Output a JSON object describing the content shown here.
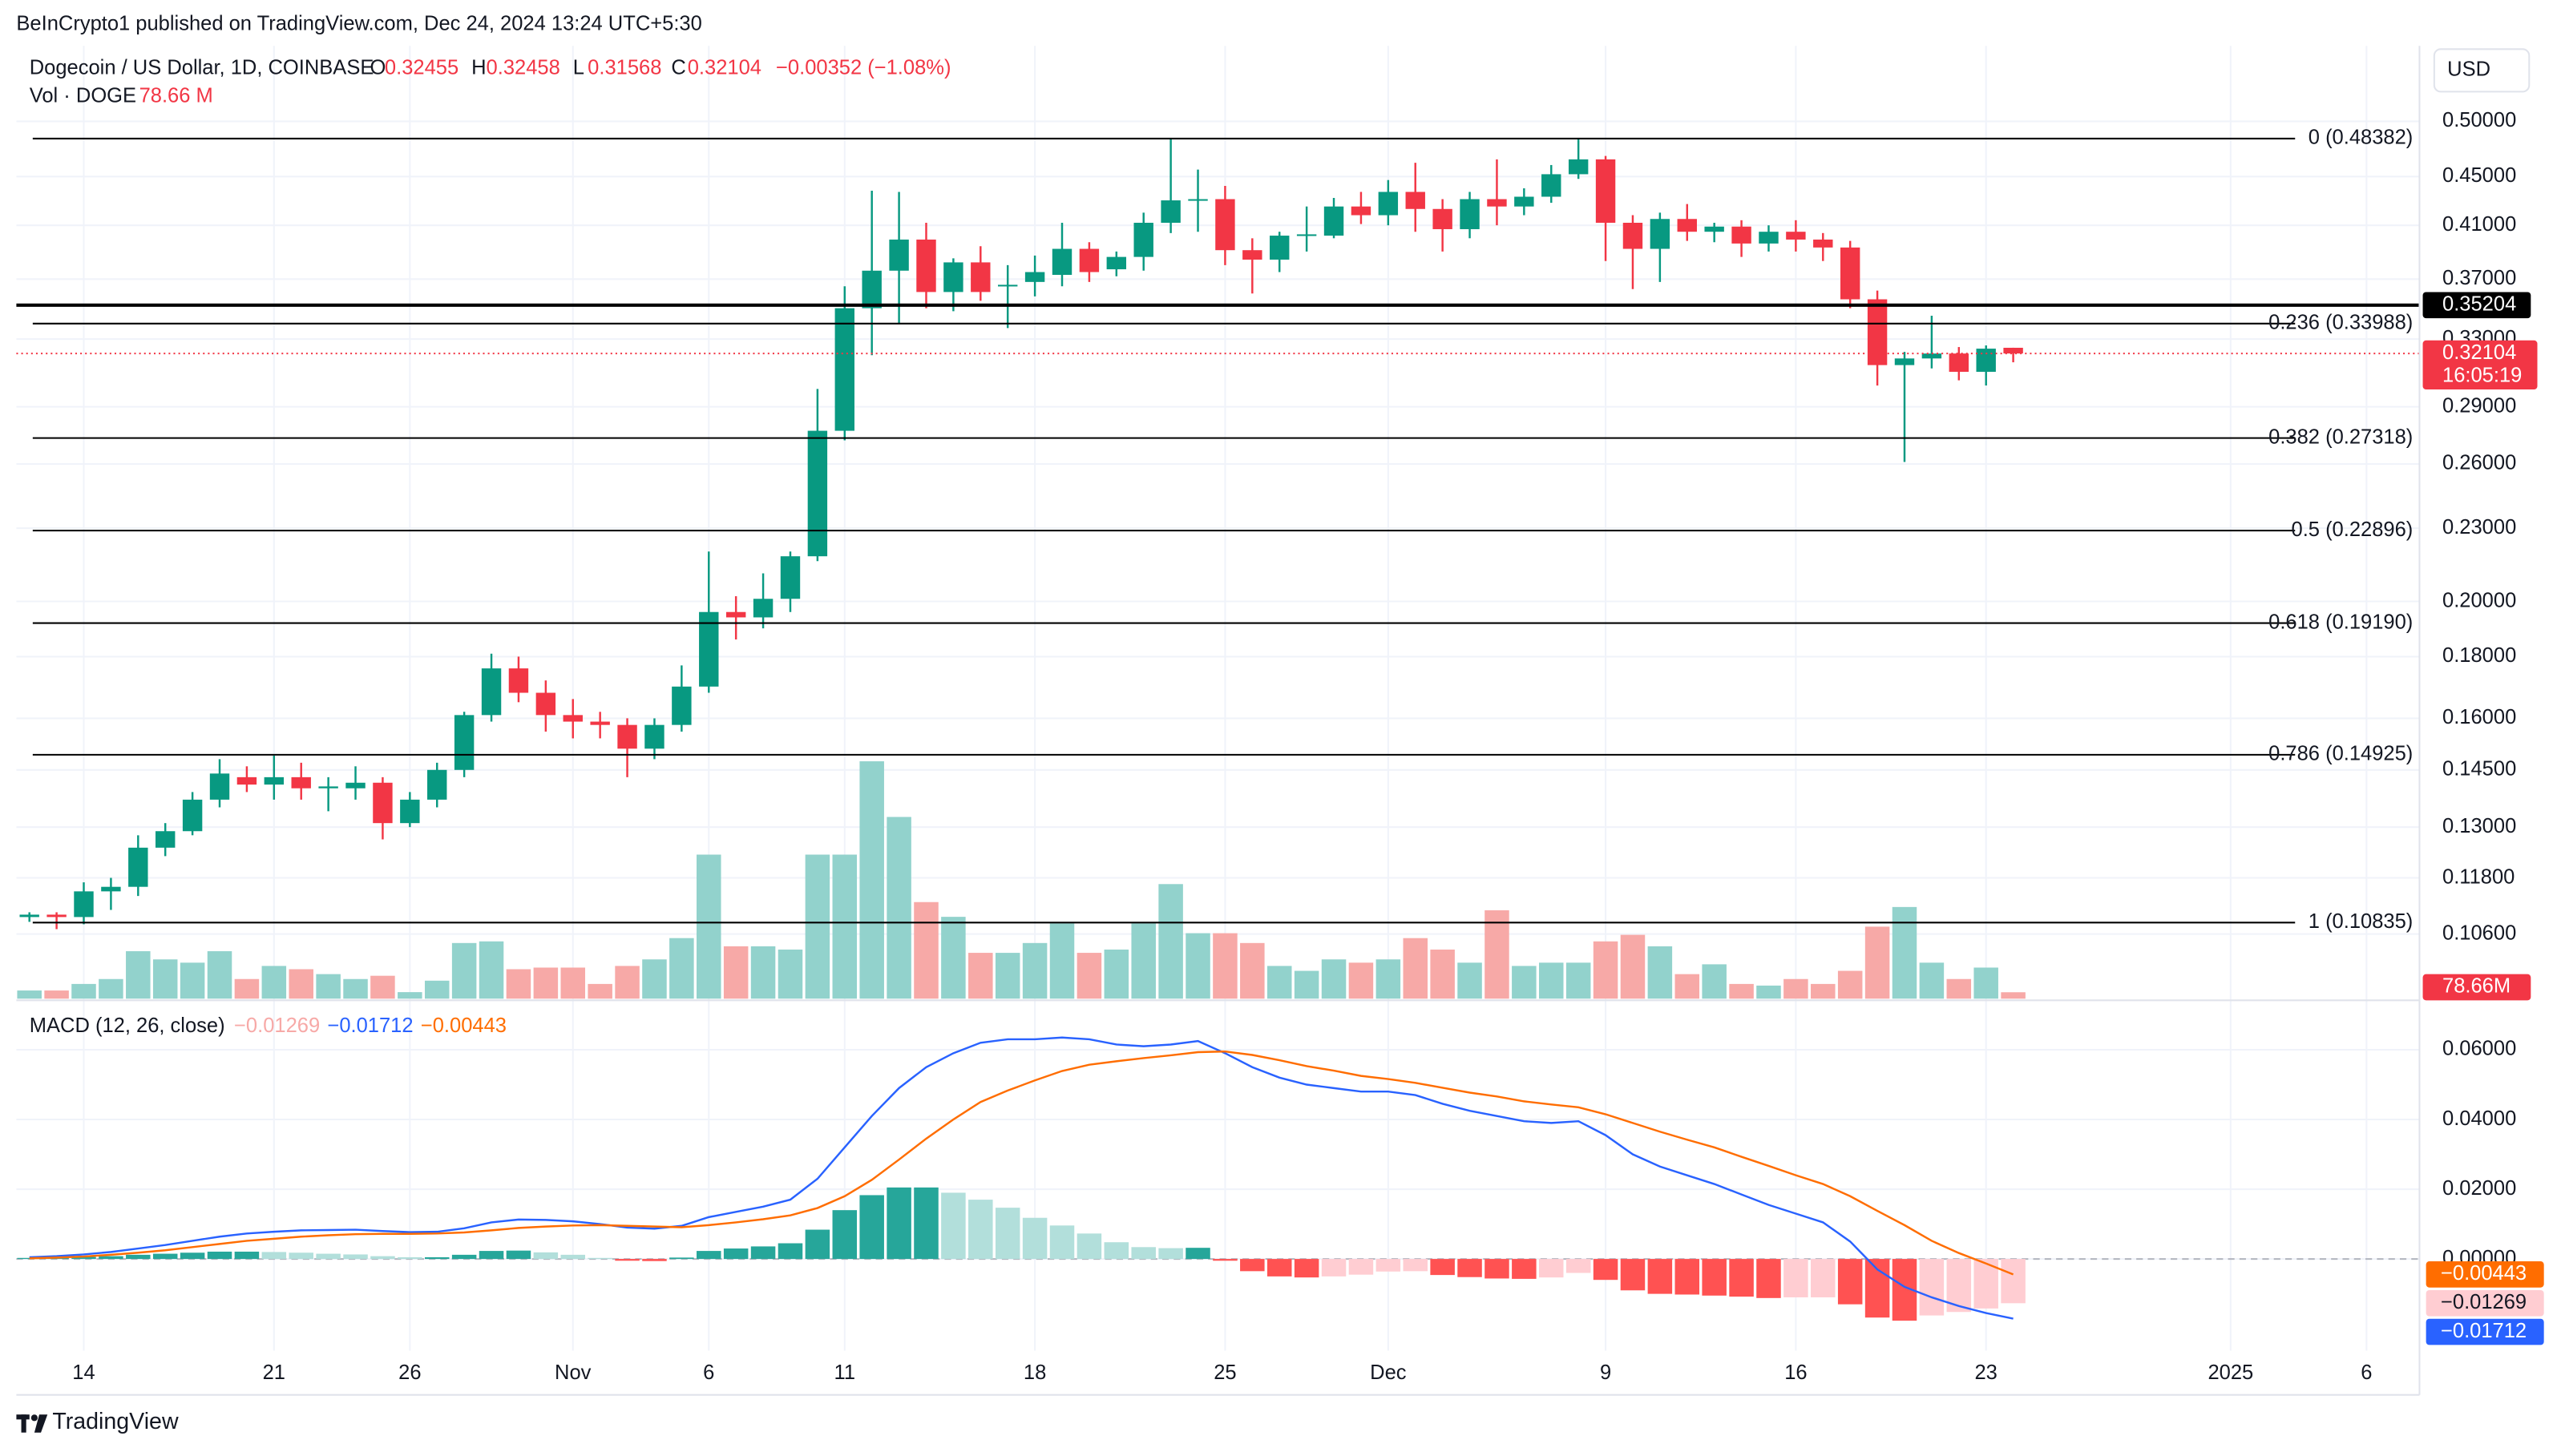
{
  "header": {
    "published": "BeInCrypto1 published on TradingView.com, Dec 24, 2024 13:24 UTC+5:30",
    "symbol": "Dogecoin / US Dollar, 1D, COINBASE",
    "ohlc": [
      {
        "key": "O",
        "value": "0.32455"
      },
      {
        "key": "H",
        "value": "0.32458"
      },
      {
        "key": "L",
        "value": "0.31568"
      },
      {
        "key": "C",
        "value": "0.32104"
      }
    ],
    "change": "−0.00352 (−1.08%)",
    "volume_title": "Vol · DOGE",
    "volume_value": "78.66 M",
    "currency": "USD",
    "brand": "TradingView"
  },
  "chart_data": {
    "type": "candlestick",
    "up_color": "#089981",
    "down_color": "#f23645",
    "log_scale": true,
    "grid": true,
    "ylim": [
      0.0937,
      0.5775
    ],
    "yticks": [
      {
        "value": 0.5,
        "label": "0.50000"
      },
      {
        "value": 0.45,
        "label": "0.45000"
      },
      {
        "value": 0.41,
        "label": "0.41000"
      },
      {
        "value": 0.37,
        "label": "0.37000"
      },
      {
        "value": 0.33,
        "label": "0.33000"
      },
      {
        "value": 0.29,
        "label": "0.29000"
      },
      {
        "value": 0.26,
        "label": "0.26000"
      },
      {
        "value": 0.23,
        "label": "0.23000"
      },
      {
        "value": 0.2,
        "label": "0.20000"
      },
      {
        "value": 0.18,
        "label": "0.18000"
      },
      {
        "value": 0.16,
        "label": "0.16000"
      },
      {
        "value": 0.145,
        "label": "0.14500"
      },
      {
        "value": 0.13,
        "label": "0.13000"
      },
      {
        "value": 0.118,
        "label": "0.11800"
      },
      {
        "value": 0.106,
        "label": "0.10600"
      }
    ],
    "xlim": [
      -0.48,
      87.95
    ],
    "xticks": [
      {
        "value": 2,
        "label": "14"
      },
      {
        "value": 9,
        "label": "21"
      },
      {
        "value": 14,
        "label": "26"
      },
      {
        "value": 20,
        "label": "Nov"
      },
      {
        "value": 25,
        "label": "6"
      },
      {
        "value": 30,
        "label": "11"
      },
      {
        "value": 37,
        "label": "18"
      },
      {
        "value": 44,
        "label": "25"
      },
      {
        "value": 50,
        "label": "Dec"
      },
      {
        "value": 58,
        "label": "9"
      },
      {
        "value": 65,
        "label": "16"
      },
      {
        "value": 72,
        "label": "23"
      },
      {
        "value": 81,
        "label": "2025"
      },
      {
        "value": 86,
        "label": "6"
      }
    ],
    "open": [
      0.1095,
      0.11,
      0.1095,
      0.115,
      0.116,
      0.125,
      0.129,
      0.137,
      0.143,
      0.141,
      0.143,
      0.14,
      0.14,
      0.1415,
      0.131,
      0.137,
      0.145,
      0.161,
      0.176,
      0.168,
      0.161,
      0.159,
      0.158,
      0.151,
      0.158,
      0.17,
      0.196,
      0.194,
      0.201,
      0.218,
      0.277,
      0.35,
      0.376,
      0.399,
      0.361,
      0.382,
      0.365,
      0.368,
      0.373,
      0.392,
      0.377,
      0.386,
      0.412,
      0.43,
      0.431,
      0.391,
      0.384,
      0.402,
      0.402,
      0.425,
      0.418,
      0.437,
      0.423,
      0.407,
      0.431,
      0.425,
      0.433,
      0.452,
      0.465,
      0.412,
      0.392,
      0.415,
      0.405,
      0.409,
      0.396,
      0.405,
      0.399,
      0.393,
      0.356,
      0.314,
      0.318,
      0.321,
      0.31,
      0.32455
    ],
    "high": [
      0.1105,
      0.1105,
      0.117,
      0.118,
      0.128,
      0.131,
      0.139,
      0.148,
      0.146,
      0.149,
      0.147,
      0.143,
      0.146,
      0.143,
      0.139,
      0.147,
      0.162,
      0.181,
      0.18,
      0.172,
      0.166,
      0.162,
      0.16,
      0.16,
      0.177,
      0.22,
      0.202,
      0.211,
      0.22,
      0.3,
      0.365,
      0.438,
      0.437,
      0.412,
      0.385,
      0.394,
      0.38,
      0.387,
      0.412,
      0.397,
      0.39,
      0.42,
      0.484,
      0.456,
      0.442,
      0.4,
      0.405,
      0.425,
      0.432,
      0.437,
      0.447,
      0.462,
      0.431,
      0.437,
      0.465,
      0.44,
      0.46,
      0.484,
      0.468,
      0.418,
      0.42,
      0.427,
      0.412,
      0.414,
      0.41,
      0.414,
      0.404,
      0.398,
      0.362,
      0.322,
      0.345,
      0.325,
      0.326,
      0.32458
    ],
    "low": [
      0.1085,
      0.107,
      0.108,
      0.111,
      0.114,
      0.123,
      0.128,
      0.135,
      0.139,
      0.137,
      0.137,
      0.134,
      0.137,
      0.127,
      0.13,
      0.135,
      0.143,
      0.159,
      0.165,
      0.156,
      0.154,
      0.154,
      0.143,
      0.148,
      0.156,
      0.168,
      0.186,
      0.19,
      0.196,
      0.216,
      0.272,
      0.32,
      0.34,
      0.35,
      0.348,
      0.355,
      0.337,
      0.358,
      0.365,
      0.368,
      0.372,
      0.376,
      0.404,
      0.405,
      0.38,
      0.36,
      0.375,
      0.39,
      0.4,
      0.411,
      0.41,
      0.405,
      0.39,
      0.4,
      0.41,
      0.418,
      0.428,
      0.448,
      0.383,
      0.363,
      0.368,
      0.398,
      0.397,
      0.386,
      0.39,
      0.39,
      0.383,
      0.35,
      0.302,
      0.261,
      0.312,
      0.305,
      0.302,
      0.31568
    ],
    "close": [
      0.11,
      0.1095,
      0.115,
      0.116,
      0.125,
      0.129,
      0.137,
      0.144,
      0.141,
      0.143,
      0.14,
      0.1405,
      0.1415,
      0.131,
      0.137,
      0.145,
      0.161,
      0.176,
      0.168,
      0.161,
      0.159,
      0.158,
      0.151,
      0.158,
      0.17,
      0.196,
      0.194,
      0.201,
      0.218,
      0.277,
      0.35,
      0.376,
      0.399,
      0.361,
      0.382,
      0.361,
      0.366,
      0.375,
      0.392,
      0.375,
      0.386,
      0.412,
      0.43,
      0.431,
      0.391,
      0.384,
      0.402,
      0.403,
      0.425,
      0.418,
      0.437,
      0.423,
      0.407,
      0.431,
      0.425,
      0.433,
      0.452,
      0.465,
      0.412,
      0.392,
      0.415,
      0.405,
      0.409,
      0.396,
      0.405,
      0.399,
      0.393,
      0.356,
      0.314,
      0.318,
      0.321,
      0.31,
      0.324,
      0.32104
    ],
    "volume": [
      100,
      100,
      180,
      240,
      580,
      480,
      440,
      580,
      240,
      400,
      360,
      300,
      240,
      280,
      80,
      220,
      680,
      700,
      360,
      380,
      380,
      180,
      400,
      480,
      740,
      1760,
      640,
      640,
      600,
      1760,
      1760,
      2900,
      2220,
      1180,
      1000,
      560,
      560,
      680,
      920,
      560,
      600,
      920,
      1400,
      800,
      800,
      680,
      400,
      340,
      480,
      440,
      480,
      740,
      600,
      440,
      1080,
      400,
      440,
      440,
      700,
      780,
      640,
      300,
      420,
      180,
      160,
      240,
      180,
      340,
      880,
      1120,
      440,
      240,
      380,
      78.66
    ],
    "volume_colors": [
      "#92d2cc",
      "#f7a9a7"
    ],
    "volume_label": "78.66M",
    "fib_levels": [
      {
        "label": "0 (0.48382)",
        "value": 0.48382
      },
      {
        "label": "0.236 (0.33988)",
        "value": 0.33988
      },
      {
        "label": "0.382 (0.27318)",
        "value": 0.27318
      },
      {
        "label": "0.5 (0.22896)",
        "value": 0.22896
      },
      {
        "label": "0.618 (0.19190)",
        "value": 0.1919
      },
      {
        "label": "0.786 (0.14925)",
        "value": 0.14925
      },
      {
        "label": "1 (0.10835)",
        "value": 0.10835
      }
    ],
    "horizontal_line": {
      "value": 0.35204,
      "label": "0.35204"
    },
    "last_price": {
      "value": 0.32104,
      "label": "0.32104",
      "countdown": "16:05:19"
    },
    "macd": {
      "title": "MACD (12, 26, close)",
      "ylim": [
        -0.0263,
        0.0737
      ],
      "yticks": [
        {
          "value": 0.06,
          "label": "0.06000"
        },
        {
          "value": 0.04,
          "label": "0.04000"
        },
        {
          "value": 0.02,
          "label": "0.02000"
        },
        {
          "value": 0,
          "label": "0.00000"
        }
      ],
      "histogram": {
        "colors": [
          "#26a69a",
          "#b2dfdb",
          "#ff5252",
          "#ffcdd2"
        ],
        "value_label": "−0.01269",
        "values": [
          0.0003,
          0.0004,
          0.0006,
          0.0008,
          0.0012,
          0.0015,
          0.0018,
          0.0021,
          0.0021,
          0.002,
          0.0018,
          0.0015,
          0.0013,
          0.0008,
          0.0005,
          0.0005,
          0.0012,
          0.0023,
          0.0024,
          0.0019,
          0.0012,
          0.0003,
          -0.0005,
          -0.0006,
          0.0004,
          0.0023,
          0.003,
          0.0036,
          0.0045,
          0.0084,
          0.014,
          0.0183,
          0.0205,
          0.0205,
          0.019,
          0.017,
          0.0147,
          0.0118,
          0.0096,
          0.0073,
          0.0048,
          0.0034,
          0.0031,
          0.0032,
          -0.0005,
          -0.0035,
          -0.005,
          -0.0053,
          -0.005,
          -0.0045,
          -0.0036,
          -0.0035,
          -0.0046,
          -0.0052,
          -0.0056,
          -0.0057,
          -0.0053,
          -0.004,
          -0.006,
          -0.009,
          -0.01,
          -0.0102,
          -0.0105,
          -0.0108,
          -0.0112,
          -0.011,
          -0.011,
          -0.013,
          -0.0168,
          -0.0177,
          -0.0162,
          -0.0152,
          -0.0142,
          -0.01269
        ]
      },
      "series": [
        {
          "color": "#2962ff",
          "value_label": "−0.01712",
          "values": [
            0.0005,
            0.0008,
            0.0013,
            0.002,
            0.003,
            0.004,
            0.0052,
            0.0064,
            0.0073,
            0.0078,
            0.0082,
            0.0083,
            0.0084,
            0.008,
            0.0077,
            0.0078,
            0.0088,
            0.0105,
            0.0113,
            0.0112,
            0.0108,
            0.01,
            0.009,
            0.0087,
            0.0095,
            0.012,
            0.0135,
            0.015,
            0.017,
            0.023,
            0.032,
            0.041,
            0.049,
            0.055,
            0.059,
            0.062,
            0.063,
            0.063,
            0.0635,
            0.063,
            0.0615,
            0.061,
            0.0615,
            0.0625,
            0.059,
            0.055,
            0.052,
            0.05,
            0.049,
            0.048,
            0.048,
            0.047,
            0.0445,
            0.0425,
            0.041,
            0.0395,
            0.039,
            0.0395,
            0.0355,
            0.03,
            0.0265,
            0.024,
            0.0215,
            0.0185,
            0.0155,
            0.013,
            0.0105,
            0.005,
            -0.003,
            -0.008,
            -0.011,
            -0.0135,
            -0.0155,
            -0.01712
          ]
        },
        {
          "color": "#ff6d00",
          "value_label": "−0.00443",
          "values": [
            0.0002,
            0.0004,
            0.0007,
            0.0012,
            0.0018,
            0.0025,
            0.0034,
            0.0043,
            0.0052,
            0.0058,
            0.0064,
            0.0068,
            0.0071,
            0.0072,
            0.0072,
            0.0073,
            0.0076,
            0.0082,
            0.0089,
            0.0093,
            0.0096,
            0.0097,
            0.0095,
            0.0093,
            0.0091,
            0.0097,
            0.0105,
            0.0114,
            0.0125,
            0.0146,
            0.018,
            0.0227,
            0.0285,
            0.0345,
            0.04,
            0.045,
            0.0483,
            0.0512,
            0.0539,
            0.0557,
            0.0567,
            0.0576,
            0.0584,
            0.0593,
            0.0595,
            0.0585,
            0.057,
            0.0553,
            0.054,
            0.0525,
            0.0516,
            0.0505,
            0.0491,
            0.0477,
            0.0466,
            0.0452,
            0.0443,
            0.0435,
            0.0415,
            0.039,
            0.0365,
            0.0342,
            0.032,
            0.0293,
            0.0267,
            0.024,
            0.0215,
            0.018,
            0.0138,
            0.0097,
            0.0052,
            0.0017,
            -0.0013,
            -0.00443
          ]
        }
      ]
    }
  }
}
